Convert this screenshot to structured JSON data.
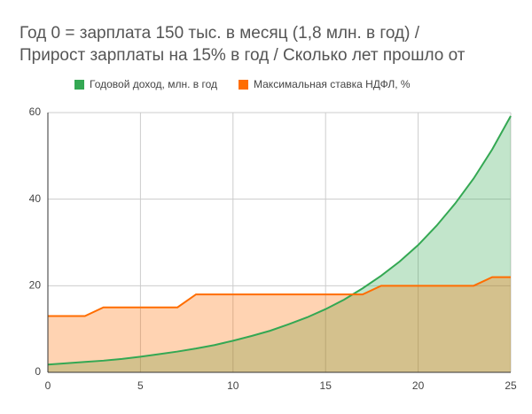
{
  "chart_data": {
    "type": "area",
    "title": [
      "Год 0 = зарплата 150 тыс. в месяц (1,8 млн. в год) /",
      "Прирост зарплаты на 15% в год / Сколько лет прошло от"
    ],
    "x": [
      0,
      1,
      2,
      3,
      4,
      5,
      6,
      7,
      8,
      9,
      10,
      11,
      12,
      13,
      14,
      15,
      16,
      17,
      18,
      19,
      20,
      21,
      22,
      23,
      24,
      25
    ],
    "series": [
      {
        "name": "Годовой доход, млн. в год",
        "color": "#34a853",
        "values": [
          1.8,
          2.1,
          2.4,
          2.7,
          3.1,
          3.6,
          4.2,
          4.8,
          5.5,
          6.3,
          7.3,
          8.4,
          9.6,
          11.1,
          12.7,
          14.6,
          16.8,
          19.4,
          22.3,
          25.6,
          29.4,
          33.9,
          39.0,
          44.8,
          51.5,
          59.2
        ]
      },
      {
        "name": "Максимальная ставка НДФЛ, %",
        "color": "#ff6d01",
        "values": [
          13,
          13,
          13,
          15,
          15,
          15,
          15,
          15,
          18,
          18,
          18,
          18,
          18,
          18,
          18,
          18,
          18,
          18,
          20,
          20,
          20,
          20,
          20,
          20,
          22,
          22
        ]
      }
    ],
    "xlim": [
      0,
      25
    ],
    "xticks": [
      0,
      5,
      10,
      15,
      20,
      25
    ],
    "ylim": [
      0,
      60
    ],
    "yticks": [
      0,
      20,
      40,
      60
    ],
    "grid": true,
    "legend": "top"
  }
}
